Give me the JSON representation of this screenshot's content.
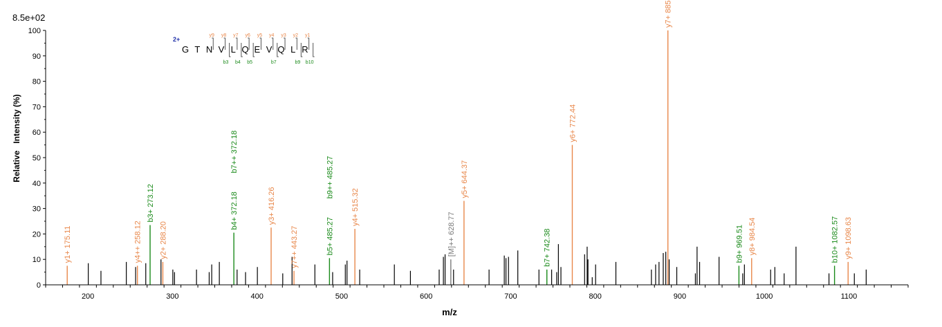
{
  "chart_data": {
    "type": "bar",
    "scale_label": "8.5e+02",
    "xlabel": "m/z",
    "ylabel": "Relative   Intensity (%)",
    "xlim": [
      150,
      1170
    ],
    "ylim": [
      0,
      100
    ],
    "x_ticks": [
      200,
      300,
      400,
      500,
      600,
      700,
      800,
      900,
      1000,
      1100
    ],
    "y_ticks": [
      0,
      10,
      20,
      30,
      40,
      50,
      60,
      70,
      80,
      90,
      100
    ],
    "colors": {
      "y_ion": "#e8874a",
      "b_ion": "#1a8a1a",
      "precursor": "#7a7a7a",
      "unannotated": "#000000",
      "charge": "#1f2fa8",
      "sequence": "#000000"
    },
    "peptide": {
      "charge": "2+",
      "residues": [
        "G",
        "T",
        "N",
        "V",
        "L",
        "Q",
        "E",
        "V",
        "Q",
        "L",
        "R"
      ],
      "y_marks": [
        {
          "after": 2,
          "label": "y9"
        },
        {
          "after": 3,
          "label": "y8"
        },
        {
          "after": 4,
          "label": "y7"
        },
        {
          "after": 5,
          "label": "y6"
        },
        {
          "after": 6,
          "label": "y5"
        },
        {
          "after": 7,
          "label": "y4"
        },
        {
          "after": 8,
          "label": "y3"
        },
        {
          "after": 9,
          "label": "y2"
        },
        {
          "after": 10,
          "label": "y1"
        }
      ],
      "b_marks": [
        {
          "after": 3,
          "label": "b3"
        },
        {
          "after": 4,
          "label": "b4"
        },
        {
          "after": 5,
          "label": "b5"
        },
        {
          "after": 7,
          "label": "b7"
        },
        {
          "after": 9,
          "label": "b9"
        },
        {
          "after": 10,
          "label": "b10"
        }
      ]
    },
    "annotated_peaks": [
      {
        "mz": 175.11,
        "intensity": 7.5,
        "kind": "y",
        "label": "y1+ 175.11"
      },
      {
        "mz": 258.12,
        "intensity": 7.5,
        "kind": "y",
        "label": "y4++ 258.12"
      },
      {
        "mz": 273.12,
        "intensity": 23.5,
        "kind": "b",
        "label": "b3+ 273.12"
      },
      {
        "mz": 288.2,
        "intensity": 9,
        "kind": "y",
        "label": "y2+ 288.20"
      },
      {
        "mz": 372.18,
        "intensity": 20.5,
        "kind": "b",
        "label": "b4+ 372.18",
        "stack": 0
      },
      {
        "mz": 372.18,
        "intensity": 20.5,
        "kind": "b",
        "label": "b7++ 372.18",
        "stack": 1
      },
      {
        "mz": 416.26,
        "intensity": 22.5,
        "kind": "y",
        "label": "y3+ 416.26"
      },
      {
        "mz": 443.27,
        "intensity": 5.5,
        "kind": "y",
        "label": "y7++ 443.27"
      },
      {
        "mz": 485.27,
        "intensity": 10.5,
        "kind": "b",
        "label": "b5+ 485.27",
        "stack": 0
      },
      {
        "mz": 485.27,
        "intensity": 10.5,
        "kind": "b",
        "label": "b9++ 485.27",
        "stack": 1
      },
      {
        "mz": 515.32,
        "intensity": 22,
        "kind": "y",
        "label": "y4+ 515.32"
      },
      {
        "mz": 628.77,
        "intensity": 10,
        "kind": "precursor",
        "label": "[M]++ 628.77"
      },
      {
        "mz": 644.37,
        "intensity": 33,
        "kind": "y",
        "label": "y5+ 644.37"
      },
      {
        "mz": 742.38,
        "intensity": 6,
        "kind": "b",
        "label": "b7+ 742.38"
      },
      {
        "mz": 772.44,
        "intensity": 55,
        "kind": "y",
        "label": "y6+ 772.44"
      },
      {
        "mz": 885.51,
        "intensity": 100,
        "kind": "y",
        "label": "y7+ 885.51"
      },
      {
        "mz": 969.51,
        "intensity": 7.5,
        "kind": "b",
        "label": "b9+ 969.51"
      },
      {
        "mz": 984.54,
        "intensity": 10.5,
        "kind": "y",
        "label": "y8+ 984.54"
      },
      {
        "mz": 1082.57,
        "intensity": 7.5,
        "kind": "b",
        "label": "b10+ 1082.57"
      },
      {
        "mz": 1098.63,
        "intensity": 9,
        "kind": "y",
        "label": "y9+ 1098.63"
      }
    ],
    "unannotated_peaks": [
      [
        200,
        8.5
      ],
      [
        215,
        5.5
      ],
      [
        245,
        9
      ],
      [
        256,
        7
      ],
      [
        268,
        8.5
      ],
      [
        286,
        10
      ],
      [
        300,
        6
      ],
      [
        302,
        5
      ],
      [
        328,
        6
      ],
      [
        343,
        5
      ],
      [
        346,
        8
      ],
      [
        355,
        9
      ],
      [
        376,
        6
      ],
      [
        386,
        5
      ],
      [
        400,
        7
      ],
      [
        430,
        4.5
      ],
      [
        441,
        11
      ],
      [
        468,
        8
      ],
      [
        489,
        5
      ],
      [
        504,
        8
      ],
      [
        506,
        9.5
      ],
      [
        521,
        6
      ],
      [
        562,
        8
      ],
      [
        581,
        5.5
      ],
      [
        615,
        6
      ],
      [
        620,
        11
      ],
      [
        622,
        12
      ],
      [
        632,
        6
      ],
      [
        674,
        6
      ],
      [
        692,
        11.5
      ],
      [
        694,
        10.5
      ],
      [
        697,
        11
      ],
      [
        708,
        13.5
      ],
      [
        733,
        6
      ],
      [
        748,
        6
      ],
      [
        754,
        5
      ],
      [
        756,
        16
      ],
      [
        759,
        7
      ],
      [
        787,
        12
      ],
      [
        790,
        15
      ],
      [
        791,
        10
      ],
      [
        796,
        3
      ],
      [
        800,
        8
      ],
      [
        824,
        9
      ],
      [
        866,
        6
      ],
      [
        871,
        8
      ],
      [
        875,
        9
      ],
      [
        880,
        12.5
      ],
      [
        883,
        13
      ],
      [
        887,
        10
      ],
      [
        896,
        7
      ],
      [
        918,
        4.5
      ],
      [
        920,
        15
      ],
      [
        923,
        9
      ],
      [
        946,
        11
      ],
      [
        974,
        4.5
      ],
      [
        976,
        8
      ],
      [
        1007,
        6
      ],
      [
        1012,
        7
      ],
      [
        1023,
        4.5
      ],
      [
        1037,
        15
      ],
      [
        1076,
        4.5
      ],
      [
        1106,
        4.5
      ],
      [
        1120,
        6
      ]
    ]
  }
}
